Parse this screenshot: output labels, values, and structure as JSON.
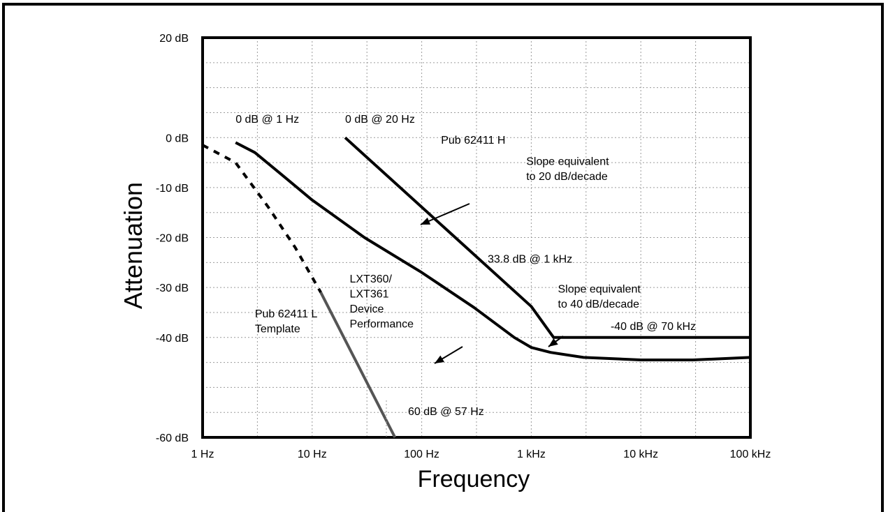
{
  "chart_data": {
    "type": "line",
    "title": "",
    "xlabel": "Frequency",
    "ylabel": "Attenuation",
    "xscale": "log",
    "xlim": [
      1,
      100000
    ],
    "ylim": [
      -60,
      20
    ],
    "grid": true,
    "x_ticks": [
      {
        "value": 1,
        "label": "1 Hz"
      },
      {
        "value": 10,
        "label": "10 Hz"
      },
      {
        "value": 100,
        "label": "100 Hz"
      },
      {
        "value": 1000,
        "label": "1 kHz"
      },
      {
        "value": 10000,
        "label": "10 kHz"
      },
      {
        "value": 100000,
        "label": "100 kHz"
      }
    ],
    "y_ticks": [
      {
        "value": 20,
        "label": "20 dB"
      },
      {
        "value": 0,
        "label": "0 dB"
      },
      {
        "value": -10,
        "label": "-10 dB"
      },
      {
        "value": -20,
        "label": "-20 dB"
      },
      {
        "value": -30,
        "label": "-30 dB"
      },
      {
        "value": -40,
        "label": "-40 dB"
      },
      {
        "value": -60,
        "label": "-60 dB"
      }
    ],
    "series": [
      {
        "name": "Pub 62411 H",
        "color": "#000000",
        "style": "solid",
        "points": [
          [
            20,
            0
          ],
          [
            1000,
            -33.8
          ],
          [
            1600,
            -40
          ],
          [
            100000,
            -40
          ]
        ]
      },
      {
        "name": "LXT360/ LXT361 Device Performance",
        "color": "#000000",
        "style": "solid",
        "points": [
          [
            2,
            -1
          ],
          [
            3,
            -3
          ],
          [
            5,
            -7
          ],
          [
            10,
            -12.5
          ],
          [
            30,
            -20
          ],
          [
            100,
            -27
          ],
          [
            300,
            -34
          ],
          [
            700,
            -40
          ],
          [
            1000,
            -42
          ],
          [
            1500,
            -43
          ],
          [
            3000,
            -44
          ],
          [
            10000,
            -44.5
          ],
          [
            30000,
            -44.5
          ],
          [
            100000,
            -44
          ]
        ]
      },
      {
        "name": "Pub 62411 L Template (dashed)",
        "color": "#000000",
        "style": "dashed",
        "points": [
          [
            1,
            -1.5
          ],
          [
            2,
            -5
          ],
          [
            4,
            -14
          ],
          [
            7,
            -22
          ],
          [
            12,
            -31
          ]
        ]
      },
      {
        "name": "Pub 62411 L Template",
        "color": "#555555",
        "style": "solid",
        "points": [
          [
            12,
            -31
          ],
          [
            57,
            -60
          ]
        ]
      }
    ],
    "annotations": [
      {
        "text": "0 dB @ 1 Hz",
        "x": 2,
        "y": 3
      },
      {
        "text": "0 dB  @ 20 Hz",
        "x": 20,
        "y": 3
      },
      {
        "text": "Pub 62411 H",
        "x": 150,
        "y": -1.2
      },
      {
        "text": "Slope equivalent",
        "x": 900,
        "y": -5.5
      },
      {
        "text": "to 20 dB/decade",
        "x": 900,
        "y": -8.5
      },
      {
        "text": "33.8 dB @ 1 kHz",
        "x": 400,
        "y": -25
      },
      {
        "text": "Slope equivalent",
        "x": 1750,
        "y": -31
      },
      {
        "text": "to 40 dB/decade",
        "x": 1750,
        "y": -34
      },
      {
        "text": "-40 dB @  70 kHz",
        "x": 5300,
        "y": -38.5
      },
      {
        "text": "LXT360/",
        "x": 22,
        "y": -29
      },
      {
        "text": "LXT361",
        "x": 22,
        "y": -32
      },
      {
        "text": "Device",
        "x": 22,
        "y": -35
      },
      {
        "text": "Performance",
        "x": 22,
        "y": -38
      },
      {
        "text": "Pub 62411 L",
        "x": 3,
        "y": -36
      },
      {
        "text": "Template",
        "x": 3,
        "y": -39
      },
      {
        "text": "60 dB @  57 Hz",
        "x": 75,
        "y": -55.5
      }
    ]
  }
}
